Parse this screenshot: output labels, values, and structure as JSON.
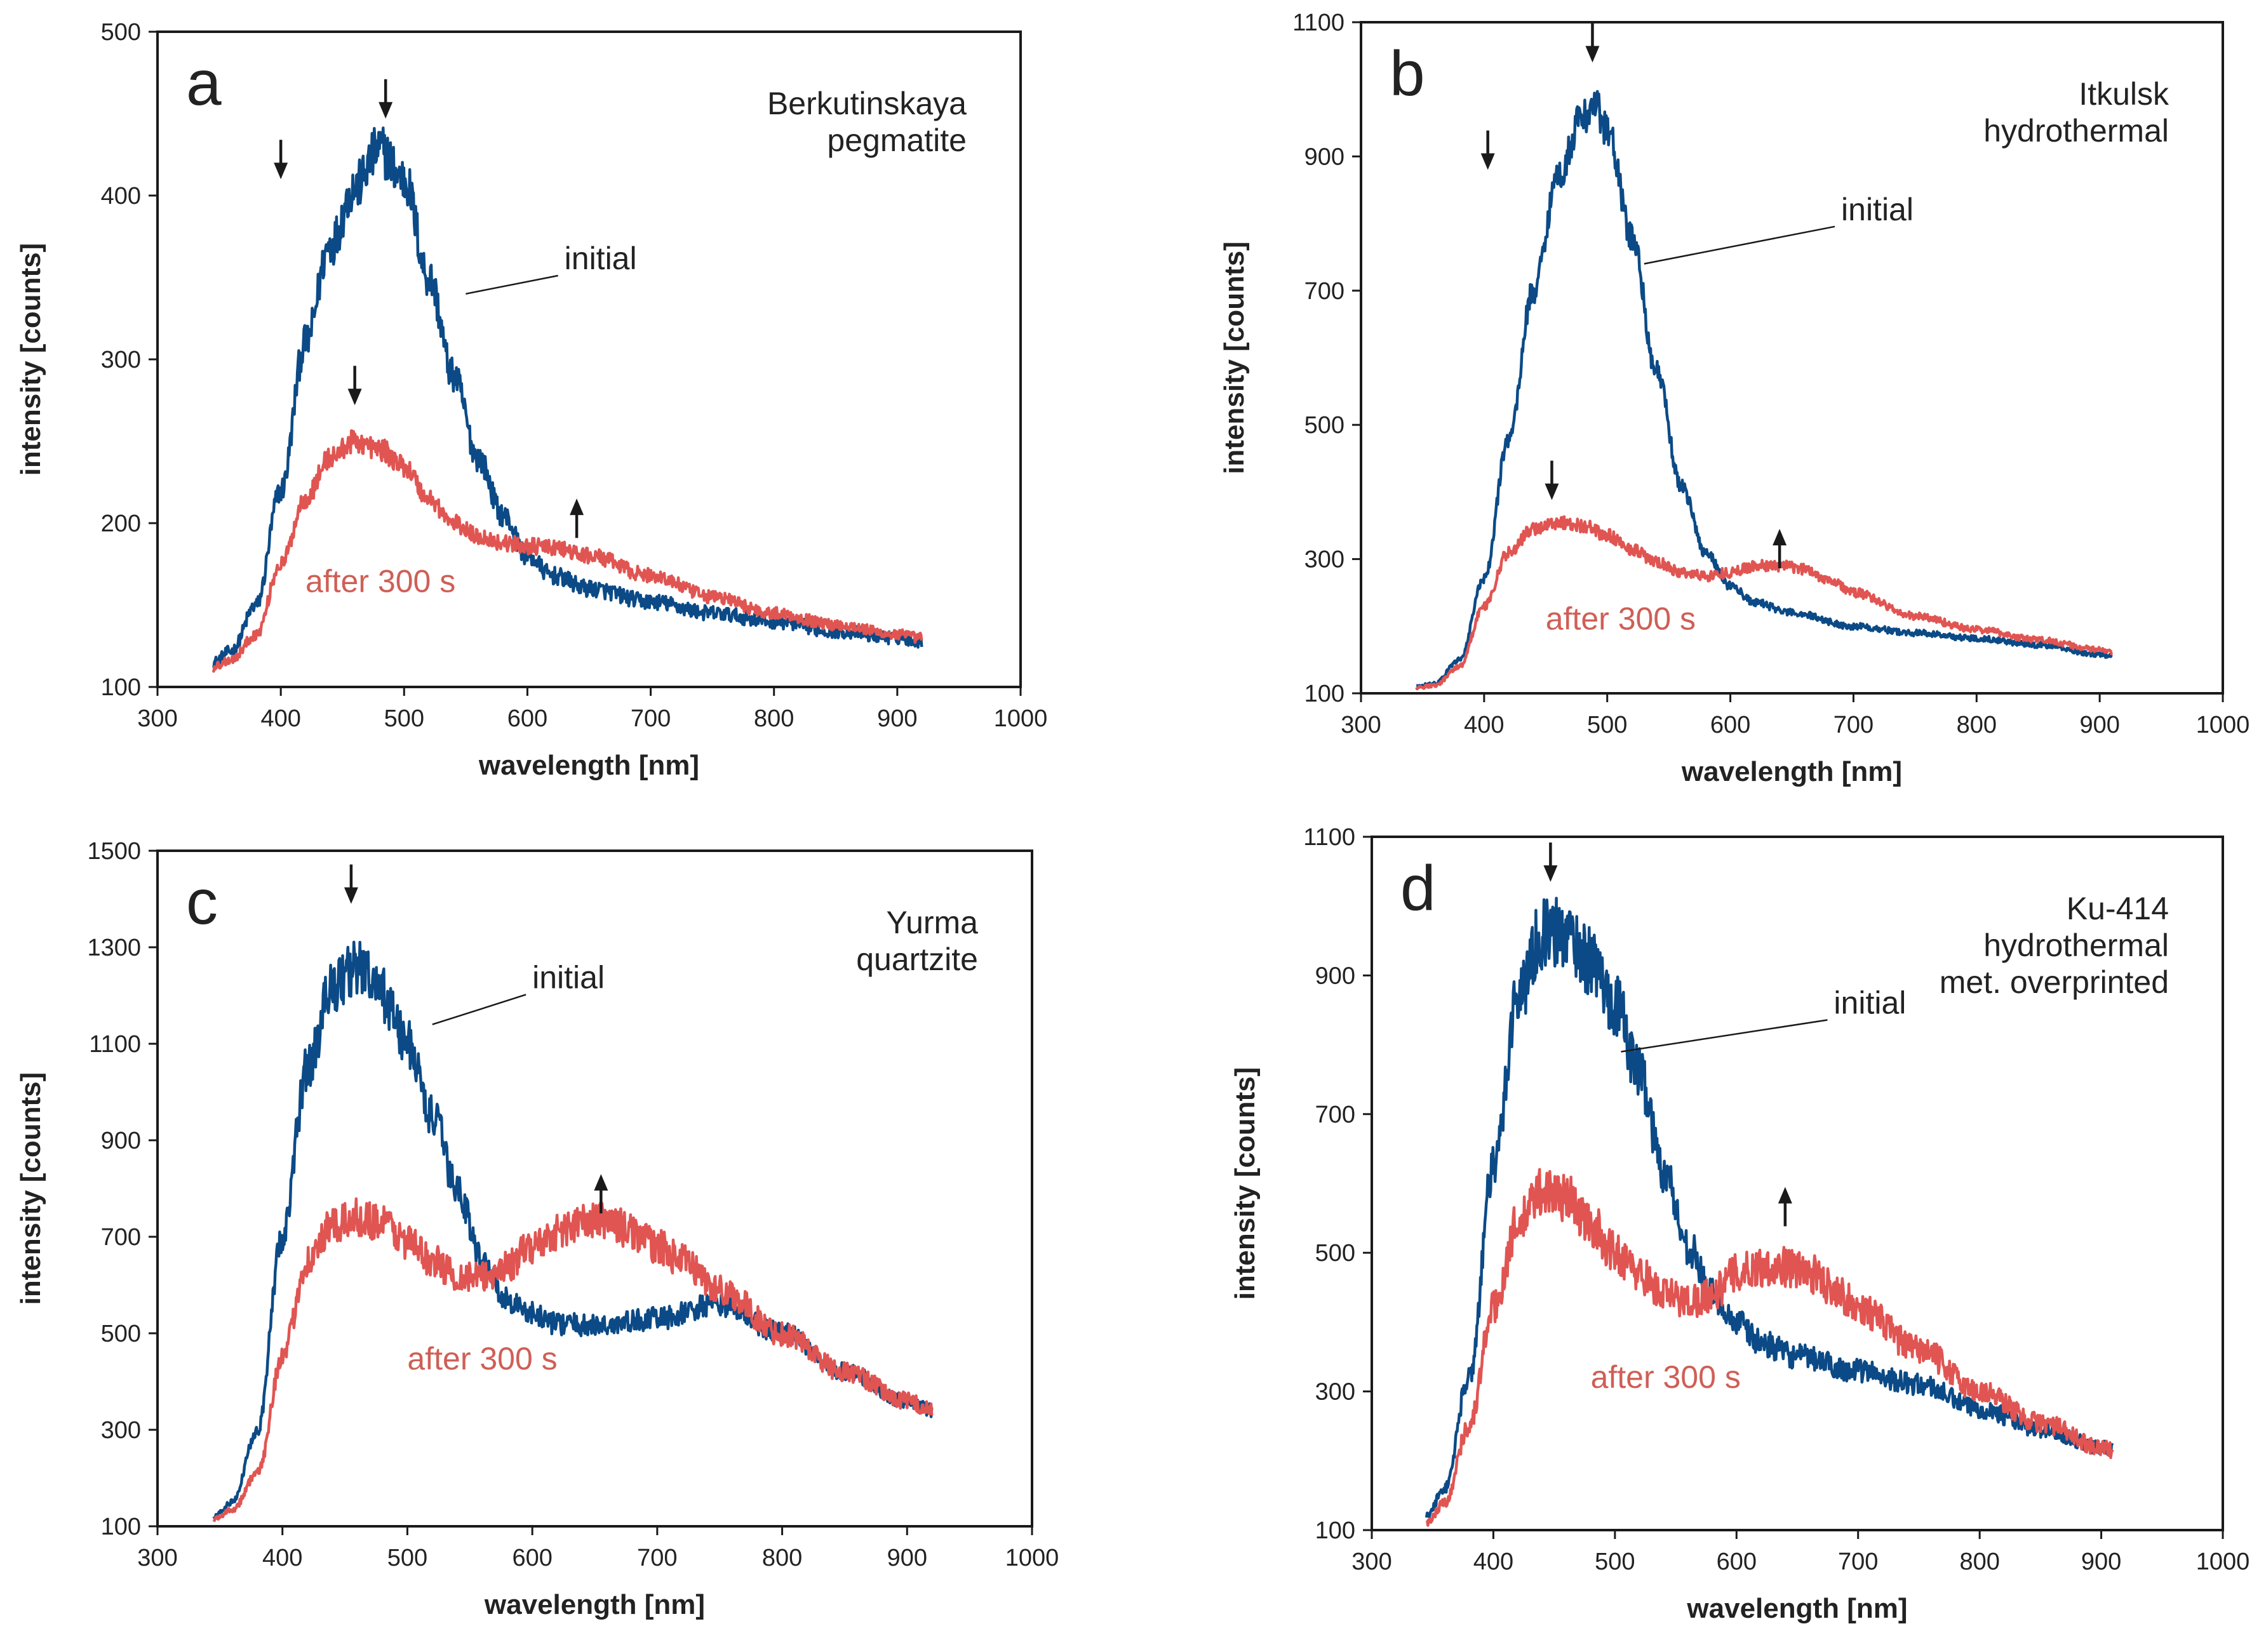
{
  "figure": {
    "colors": {
      "initial": "#0b4a86",
      "after": "#e05552",
      "axis": "#1a1a1a",
      "text": "#222222",
      "after_label": "#cf5f56"
    }
  },
  "chart_data": [
    {
      "type": "line",
      "panel": "a",
      "title": "Berkutinskaya\npegmatite",
      "xlabel": "wavelength [nm]",
      "ylabel": "intensity [counts]",
      "xlim": [
        300,
        1000
      ],
      "ylim": [
        100,
        500
      ],
      "xticks": [
        300,
        400,
        500,
        600,
        700,
        800,
        900,
        1000
      ],
      "yticks": [
        100,
        200,
        300,
        400,
        500
      ],
      "series_labels": [
        "initial",
        "after 300 s"
      ],
      "series": [
        {
          "name": "initial",
          "noise": 0.025,
          "x": [
            345,
            360,
            380,
            400,
            420,
            440,
            460,
            480,
            500,
            520,
            540,
            560,
            580,
            600,
            620,
            650,
            700,
            750,
            800,
            850,
            900,
            920
          ],
          "y": [
            115,
            122,
            150,
            220,
            310,
            370,
            405,
            428,
            410,
            350,
            290,
            240,
            205,
            180,
            168,
            160,
            152,
            145,
            140,
            134,
            130,
            128
          ]
        },
        {
          "name": "after 300 s",
          "noise": 0.02,
          "x": [
            345,
            360,
            380,
            400,
            420,
            440,
            460,
            480,
            500,
            520,
            540,
            560,
            580,
            600,
            620,
            650,
            700,
            750,
            800,
            850,
            900,
            920
          ],
          "y": [
            112,
            117,
            132,
            175,
            215,
            240,
            250,
            245,
            235,
            215,
            200,
            192,
            188,
            186,
            185,
            180,
            168,
            155,
            145,
            138,
            132,
            130
          ]
        }
      ],
      "annotations": {
        "down_arrows": [
          {
            "x": 400,
            "y": 410,
            "series": "blue"
          },
          {
            "x": 485,
            "y": 447,
            "series": "blue"
          },
          {
            "x": 460,
            "y": 272,
            "series": "red"
          }
        ],
        "up_arrows": [
          {
            "x": 640,
            "y": 215
          }
        ],
        "initial_label": {
          "x": 630,
          "y": 355,
          "leader_to": [
            550,
            340
          ]
        },
        "after_label": {
          "x": 420,
          "y": 158
        }
      }
    },
    {
      "type": "line",
      "panel": "b",
      "title": "Itkulsk\nhydrothermal",
      "xlabel": "wavelength [nm]",
      "ylabel": "intensity [counts]",
      "xlim": [
        300,
        1000
      ],
      "ylim": [
        100,
        1100
      ],
      "xticks": [
        300,
        400,
        500,
        600,
        700,
        800,
        900,
        1000
      ],
      "yticks": [
        100,
        300,
        500,
        700,
        900,
        1100
      ],
      "series_labels": [
        "initial",
        "after 300 s"
      ],
      "series": [
        {
          "name": "initial",
          "noise": 0.018,
          "x": [
            345,
            360,
            380,
            400,
            420,
            440,
            460,
            480,
            490,
            500,
            520,
            540,
            560,
            580,
            600,
            620,
            650,
            700,
            750,
            800,
            850,
            900,
            910
          ],
          "y": [
            110,
            115,
            150,
            270,
            480,
            700,
            870,
            960,
            975,
            940,
            780,
            580,
            410,
            310,
            260,
            235,
            220,
            200,
            190,
            182,
            172,
            158,
            155
          ]
        },
        {
          "name": "after 300 s",
          "noise": 0.02,
          "x": [
            345,
            360,
            380,
            400,
            420,
            440,
            460,
            480,
            500,
            520,
            540,
            560,
            580,
            600,
            620,
            640,
            660,
            680,
            700,
            750,
            800,
            850,
            900,
            910
          ],
          "y": [
            108,
            112,
            140,
            230,
            310,
            345,
            355,
            350,
            335,
            315,
            295,
            280,
            275,
            280,
            290,
            290,
            285,
            270,
            250,
            215,
            195,
            180,
            165,
            160
          ]
        }
      ],
      "annotations": {
        "down_arrows": [
          {
            "x": 403,
            "y": 880,
            "series": "blue"
          },
          {
            "x": 488,
            "y": 1040,
            "series": "blue"
          },
          {
            "x": 455,
            "y": 388,
            "series": "red"
          }
        ],
        "up_arrows": [
          {
            "x": 640,
            "y": 345
          }
        ],
        "initial_label": {
          "x": 690,
          "y": 805,
          "leader_to": [
            530,
            740
          ]
        },
        "after_label": {
          "x": 450,
          "y": 195
        }
      }
    },
    {
      "type": "line",
      "panel": "c",
      "title": "Yurma\nquartzite",
      "xlabel": "wavelength [nm]",
      "ylabel": "intensity [counts]",
      "xlim": [
        300,
        1000
      ],
      "ylim": [
        100,
        1500
      ],
      "xticks": [
        300,
        400,
        500,
        600,
        700,
        800,
        900,
        1000
      ],
      "yticks": [
        100,
        300,
        500,
        700,
        900,
        1100,
        1300,
        1500
      ],
      "series_labels": [
        "initial",
        "after 300 s"
      ],
      "series": [
        {
          "name": "initial",
          "noise": 0.03,
          "x": [
            345,
            360,
            380,
            400,
            420,
            440,
            460,
            480,
            500,
            520,
            540,
            560,
            580,
            600,
            620,
            650,
            700,
            750,
            800,
            850,
            900,
            920
          ],
          "y": [
            120,
            150,
            300,
            700,
            1050,
            1220,
            1260,
            1200,
            1100,
            950,
            800,
            650,
            570,
            540,
            520,
            515,
            530,
            560,
            500,
            420,
            360,
            340
          ]
        },
        {
          "name": "after 300 s",
          "noise": 0.035,
          "x": [
            345,
            360,
            380,
            400,
            420,
            440,
            460,
            480,
            500,
            520,
            540,
            560,
            580,
            600,
            620,
            640,
            660,
            680,
            700,
            720,
            750,
            800,
            850,
            900,
            920
          ],
          "y": [
            115,
            135,
            210,
            450,
            650,
            720,
            740,
            730,
            690,
            650,
            620,
            615,
            640,
            680,
            710,
            730,
            735,
            710,
            680,
            650,
            590,
            500,
            420,
            360,
            340
          ]
        }
      ],
      "annotations": {
        "down_arrows": [
          {
            "x": 455,
            "y": 1390,
            "series": "blue"
          }
        ],
        "up_arrows": [
          {
            "x": 655,
            "y": 830
          }
        ],
        "initial_label": {
          "x": 600,
          "y": 1215,
          "leader_to": [
            520,
            1140
          ]
        },
        "after_label": {
          "x": 500,
          "y": 425
        }
      }
    },
    {
      "type": "line",
      "panel": "d",
      "title": "Ku-414\nhydrothermal\nmet. overprinted",
      "xlabel": "wavelength [nm]",
      "ylabel": "intensity [counts]",
      "xlim": [
        300,
        1000
      ],
      "ylim": [
        100,
        1100
      ],
      "xticks": [
        300,
        400,
        500,
        600,
        700,
        800,
        900,
        1000
      ],
      "yticks": [
        100,
        300,
        500,
        700,
        900,
        1100
      ],
      "series_labels": [
        "initial",
        "after 300 s"
      ],
      "series": [
        {
          "name": "initial",
          "noise": 0.035,
          "x": [
            345,
            360,
            380,
            400,
            420,
            440,
            460,
            480,
            500,
            520,
            540,
            560,
            580,
            600,
            620,
            650,
            700,
            750,
            800,
            850,
            900,
            910
          ],
          "y": [
            120,
            160,
            320,
            620,
            870,
            960,
            960,
            920,
            860,
            760,
            620,
            510,
            440,
            400,
            370,
            350,
            330,
            310,
            275,
            245,
            220,
            215
          ]
        },
        {
          "name": "after 300 s",
          "noise": 0.04,
          "x": [
            345,
            360,
            380,
            400,
            420,
            440,
            460,
            480,
            500,
            520,
            540,
            560,
            580,
            600,
            620,
            640,
            660,
            680,
            700,
            750,
            800,
            850,
            900,
            910
          ],
          "y": [
            110,
            140,
            250,
            420,
            540,
            590,
            580,
            540,
            500,
            470,
            440,
            430,
            440,
            470,
            480,
            480,
            470,
            450,
            420,
            360,
            300,
            255,
            220,
            215
          ]
        }
      ],
      "annotations": {
        "down_arrows": [
          {
            "x": 447,
            "y": 1035,
            "series": "blue"
          }
        ],
        "up_arrows": [
          {
            "x": 640,
            "y": 595
          }
        ],
        "initial_label": {
          "x": 680,
          "y": 845,
          "leader_to": [
            505,
            790
          ]
        },
        "after_label": {
          "x": 480,
          "y": 305
        }
      }
    }
  ]
}
